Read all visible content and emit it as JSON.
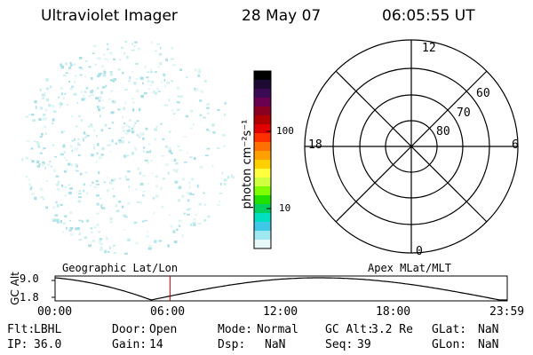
{
  "header": {
    "title": "Ultraviolet Imager",
    "date": "28 May 07",
    "time": "06:05:55 UT"
  },
  "colorbar": {
    "unit_label": "photon cm⁻²s⁻¹",
    "ticks": [
      "100",
      "10"
    ],
    "colors": [
      "#000000",
      "#1c0a33",
      "#3a0a55",
      "#6a0050",
      "#8a0020",
      "#b00000",
      "#e00000",
      "#ff3000",
      "#ff7000",
      "#ffa000",
      "#ffd000",
      "#ffff40",
      "#d0ff40",
      "#80ff00",
      "#20e000",
      "#00d060",
      "#00e0c0",
      "#40c8e8",
      "#a0e8f0",
      "#e8f8f8"
    ]
  },
  "polar": {
    "mlt_labels": [
      "12",
      "18",
      "6",
      "0"
    ],
    "mlat_labels": [
      "60",
      "70",
      "80"
    ]
  },
  "timeline": {
    "left_title": "Geographic Lat/Lon",
    "right_title": "Apex MLat/MLT",
    "axis_label": "GC Alt",
    "y_ticks": [
      "9.0",
      "1.8"
    ],
    "x_ticks": [
      "00:00",
      "06:00",
      "12:00",
      "18:00",
      "23:59"
    ],
    "marker_time_hours": 6.1
  },
  "status": {
    "row1": [
      {
        "label": "Flt:",
        "value": "LBHL"
      },
      {
        "label": "Door:",
        "value": "Open"
      },
      {
        "label": "Mode:",
        "value": "Normal"
      },
      {
        "label": "GC Alt:",
        "value": "3.2 Re"
      },
      {
        "label": "GLat:",
        "value": "NaN"
      }
    ],
    "row2": [
      {
        "label": "IP:",
        "value": "36.0"
      },
      {
        "label": "Gain:",
        "value": "14"
      },
      {
        "label": "Dsp:",
        "value": "NaN"
      },
      {
        "label": "Seq:",
        "value": "39"
      },
      {
        "label": "GLon:",
        "value": "NaN"
      }
    ]
  }
}
